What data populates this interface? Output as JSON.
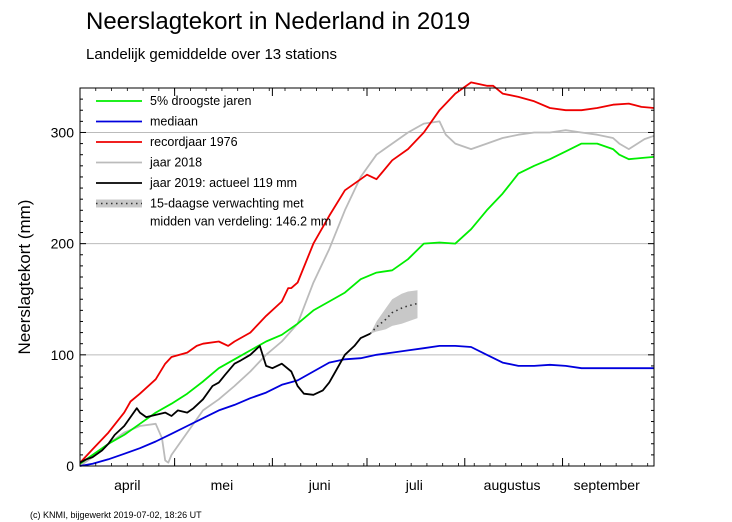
{
  "title": "Neerslagtekort in Nederland in 2019",
  "subtitle": "Landelijk gemiddelde over 13 stations",
  "credit": "(c) KNMI, bijgewerkt 2019-07-02, 18:26 UT",
  "chart_data": {
    "type": "line",
    "title": "Neerslagtekort in Nederland in 2019",
    "subtitle": "Landelijk gemiddelde over 13 stations",
    "xlabel": "",
    "ylabel": "Neerslagtekort (mm)",
    "x_unit": "day of year",
    "xlim": [
      91,
      273
    ],
    "ylim": [
      0,
      340
    ],
    "yticks": [
      0,
      100,
      200,
      300
    ],
    "month_ticks": [
      91,
      121,
      152,
      182,
      213,
      244,
      273
    ],
    "month_labels": [
      {
        "label": "april",
        "x": 106
      },
      {
        "label": "mei",
        "x": 136
      },
      {
        "label": "juni",
        "x": 167
      },
      {
        "label": "juli",
        "x": 197
      },
      {
        "label": "augustus",
        "x": 228
      },
      {
        "label": "september",
        "x": 258
      }
    ],
    "grid": true,
    "legend_position": "top-left",
    "series": [
      {
        "name": "5% droogste jaren",
        "color": "#00ee00",
        "style": "solid",
        "x": [
          91,
          95,
          100,
          105,
          110,
          115,
          120,
          125,
          130,
          135,
          140,
          145,
          150,
          155,
          160,
          165,
          170,
          175,
          180,
          185,
          190,
          195,
          200,
          205,
          210,
          215,
          220,
          225,
          230,
          235,
          240,
          245,
          250,
          255,
          260,
          262,
          265,
          269,
          273
        ],
        "y": [
          2,
          10,
          20,
          28,
          38,
          48,
          56,
          65,
          76,
          88,
          96,
          104,
          112,
          118,
          128,
          140,
          148,
          156,
          168,
          174,
          176,
          186,
          200,
          201,
          200,
          213,
          230,
          245,
          263,
          270,
          276,
          283,
          290,
          290,
          285,
          280,
          276,
          277,
          278
        ]
      },
      {
        "name": "mediaan",
        "color": "#0000dd",
        "style": "solid",
        "x": [
          91,
          95,
          100,
          105,
          110,
          115,
          120,
          125,
          130,
          135,
          140,
          145,
          150,
          155,
          160,
          165,
          170,
          175,
          180,
          185,
          190,
          195,
          200,
          205,
          210,
          215,
          220,
          225,
          230,
          235,
          240,
          245,
          250,
          255,
          260,
          265,
          273
        ],
        "y": [
          0,
          2,
          6,
          11,
          16,
          22,
          29,
          36,
          43,
          50,
          55,
          61,
          66,
          73,
          77,
          85,
          93,
          96,
          97,
          100,
          102,
          104,
          106,
          108,
          108,
          107,
          100,
          93,
          90,
          90,
          91,
          90,
          88,
          88,
          88,
          88,
          88
        ]
      },
      {
        "name": "recordjaar 1976",
        "color": "#ee0000",
        "style": "solid",
        "x": [
          91,
          95,
          100,
          105,
          107,
          110,
          115,
          118,
          120,
          125,
          128,
          130,
          135,
          138,
          140,
          145,
          150,
          155,
          157,
          158,
          160,
          165,
          170,
          175,
          180,
          182,
          185,
          190,
          195,
          200,
          205,
          210,
          215,
          220,
          222,
          225,
          230,
          235,
          240,
          245,
          250,
          255,
          260,
          265,
          269,
          273
        ],
        "y": [
          3,
          15,
          30,
          48,
          58,
          65,
          78,
          92,
          98,
          102,
          108,
          110,
          112,
          108,
          112,
          120,
          135,
          148,
          160,
          160,
          165,
          200,
          225,
          248,
          258,
          262,
          258,
          275,
          285,
          300,
          320,
          335,
          345,
          342,
          342,
          335,
          332,
          328,
          322,
          320,
          320,
          322,
          325,
          326,
          323,
          322
        ]
      },
      {
        "name": "jaar 2018",
        "color": "#bbbbbb",
        "style": "solid",
        "x": [
          91,
          95,
          100,
          105,
          110,
          115,
          117,
          118,
          119,
          120,
          125,
          130,
          135,
          140,
          145,
          150,
          155,
          160,
          165,
          170,
          175,
          180,
          185,
          190,
          195,
          200,
          205,
          207,
          210,
          215,
          220,
          225,
          230,
          235,
          240,
          245,
          250,
          255,
          260,
          262,
          265,
          270,
          273
        ],
        "y": [
          0,
          8,
          20,
          30,
          36,
          38,
          25,
          5,
          3,
          10,
          30,
          50,
          60,
          72,
          85,
          100,
          112,
          128,
          165,
          195,
          230,
          260,
          280,
          290,
          300,
          308,
          310,
          298,
          290,
          285,
          290,
          295,
          298,
          300,
          300,
          302,
          300,
          298,
          295,
          290,
          285,
          294,
          297
        ]
      },
      {
        "name": "jaar 2019: actueel 119 mm",
        "color": "#000000",
        "style": "solid",
        "x": [
          91,
          93,
          95,
          98,
          100,
          102,
          105,
          107,
          109,
          110,
          112,
          115,
          118,
          120,
          122,
          125,
          127,
          130,
          133,
          135,
          137,
          140,
          142,
          145,
          148,
          150,
          152,
          155,
          158,
          160,
          162,
          165,
          168,
          170,
          172,
          175,
          178,
          180,
          183
        ],
        "y": [
          3,
          6,
          8,
          14,
          20,
          28,
          36,
          44,
          52,
          48,
          44,
          46,
          48,
          45,
          50,
          48,
          52,
          60,
          72,
          75,
          82,
          92,
          95,
          100,
          108,
          90,
          88,
          92,
          85,
          72,
          65,
          64,
          68,
          75,
          85,
          100,
          108,
          115,
          119
        ]
      },
      {
        "name": "15-daagse verwachting met midden van verdeling: 146.2 mm",
        "color": "#333333",
        "style": "dotted",
        "x": [
          183,
          185,
          188,
          190,
          193,
          195,
          198
        ],
        "y": [
          119,
          125,
          132,
          138,
          142,
          144,
          146.2
        ],
        "band_low": [
          119,
          121,
          123,
          126,
          128,
          130,
          133
        ],
        "band_high": [
          119,
          130,
          142,
          150,
          155,
          157,
          158
        ],
        "band_color": "#c8c8c8"
      }
    ]
  }
}
